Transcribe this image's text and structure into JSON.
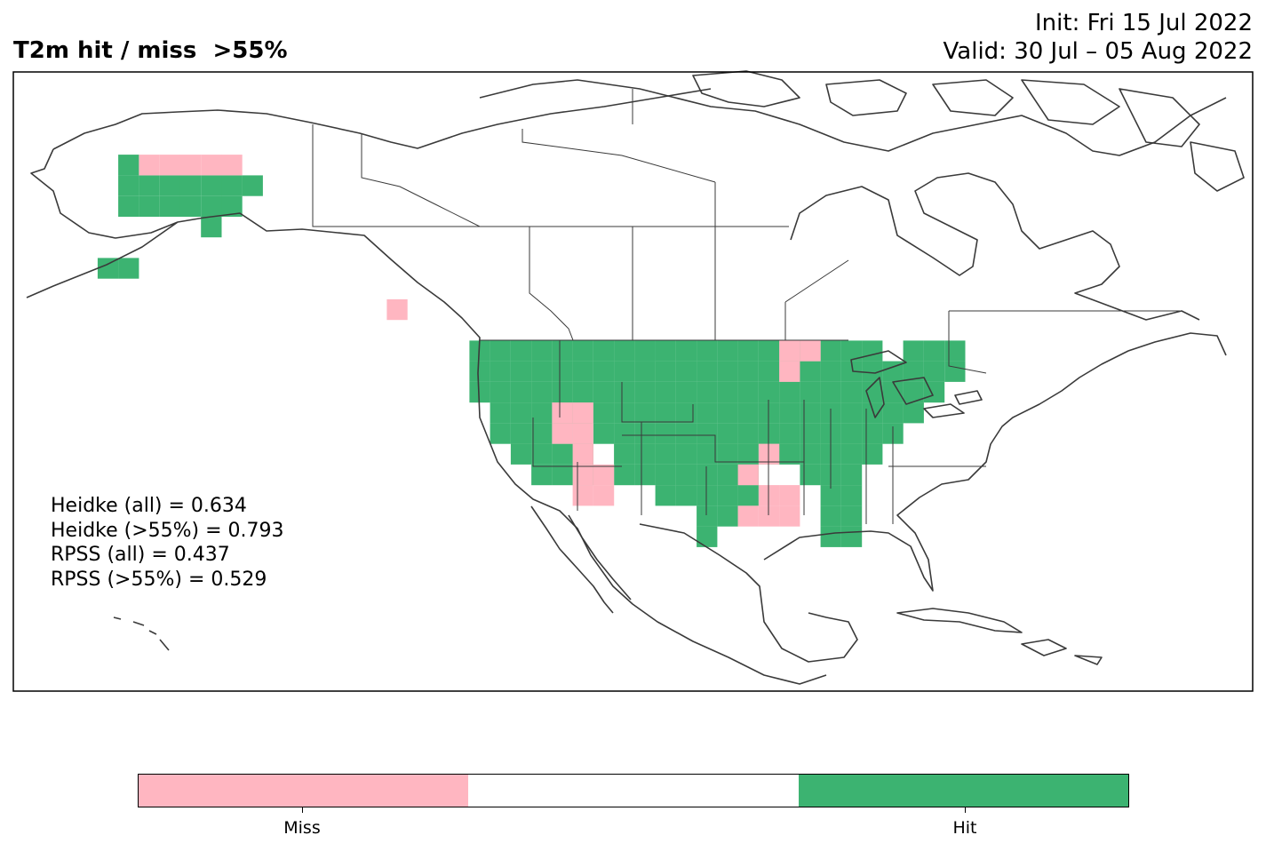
{
  "title": "T2m hit / miss  >55%",
  "init_line": "Init: Fri 15 Jul 2022",
  "valid_line": "Valid: 30 Jul – 05 Aug 2022",
  "stats": [
    "Heidke (all) = 0.634",
    "Heidke (>55%) = 0.793",
    "RPSS (all) = 0.437",
    "RPSS (>55%) = 0.529"
  ],
  "colors": {
    "miss": "#ffb6c1",
    "neutral": "#ffffff",
    "hit": "#3cb371",
    "coast": "#3a3a3a"
  },
  "legend": {
    "miss_label": "Miss",
    "hit_label": "Hit"
  },
  "grid": {
    "lon_step": 2.5,
    "lat_step": 2.5,
    "hit_runs": [
      [
        47.5,
        -125,
        -105
      ],
      [
        47.5,
        -105,
        -90
      ],
      [
        47.5,
        -87.5,
        -77.5
      ],
      [
        47.5,
        -72.5,
        -67.5
      ],
      [
        45,
        -125,
        -87.5
      ],
      [
        45,
        -85,
        -67.5
      ],
      [
        42.5,
        -125,
        -70
      ],
      [
        40,
        -122.5,
        -72.5
      ],
      [
        37.5,
        -122.5,
        -115
      ],
      [
        37.5,
        -110,
        -75
      ],
      [
        35,
        -120,
        -112.5
      ],
      [
        35,
        -107.5,
        -90
      ],
      [
        35,
        -87.5,
        -77.5
      ],
      [
        32.5,
        -117.5,
        -112.5
      ],
      [
        32.5,
        -107.5,
        -92.5
      ],
      [
        32.5,
        -85,
        -80
      ],
      [
        30,
        -102.5,
        -92.5
      ],
      [
        30,
        -82.5,
        -80
      ],
      [
        27.5,
        -97.5,
        -95
      ],
      [
        27.5,
        -82.5,
        -80
      ],
      [
        25,
        -97.5,
        -97.5
      ],
      [
        25,
        -82.5,
        -80
      ],
      [
        70,
        -167.5,
        -167.5
      ],
      [
        67.5,
        -167.5,
        -152.5
      ],
      [
        65,
        -167.5,
        -155
      ],
      [
        62.5,
        -157.5,
        -157.5
      ],
      [
        57.5,
        -170,
        -167.5
      ]
    ],
    "miss_runs": [
      [
        70,
        -165,
        -155
      ],
      [
        52.5,
        -135,
        -135
      ],
      [
        47.5,
        -87.5,
        -85
      ],
      [
        45,
        -87.5,
        -87.5
      ],
      [
        40,
        -115,
        -112.5
      ],
      [
        37.5,
        -115,
        -112.5
      ],
      [
        35,
        -112.5,
        -112.5
      ],
      [
        35,
        -90,
        -90
      ],
      [
        32.5,
        -112.5,
        -110
      ],
      [
        32.5,
        -92.5,
        -92.5
      ],
      [
        30,
        -112.5,
        -110
      ],
      [
        30,
        -90,
        -87.5
      ],
      [
        27.5,
        -92.5,
        -87.5
      ]
    ]
  }
}
